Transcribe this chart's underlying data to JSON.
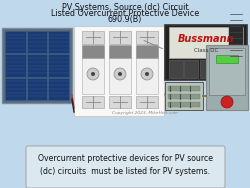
{
  "bg_color": "#c0d8ec",
  "title_lines": [
    "PV Systems, Source (dc) Circuit",
    "Listed Overcurrent Protective Device",
    "690.9(B)"
  ],
  "title_fontsize": 5.8,
  "title_color": "#111111",
  "caption_text": "Overcurrent protective devices for PV source\n(dc) circuits  must be listed for PV systems.",
  "caption_fontsize": 5.6,
  "caption_box_color": "#dce8f0",
  "caption_box_edge": "#aaaaaa",
  "copyright_text": "Copyright 2023, MikeHolt.com",
  "copyright_fontsize": 3.2,
  "copyright_color": "#888888",
  "bussmann_label": "Bussmann",
  "bussmann_sub": "Class DC"
}
